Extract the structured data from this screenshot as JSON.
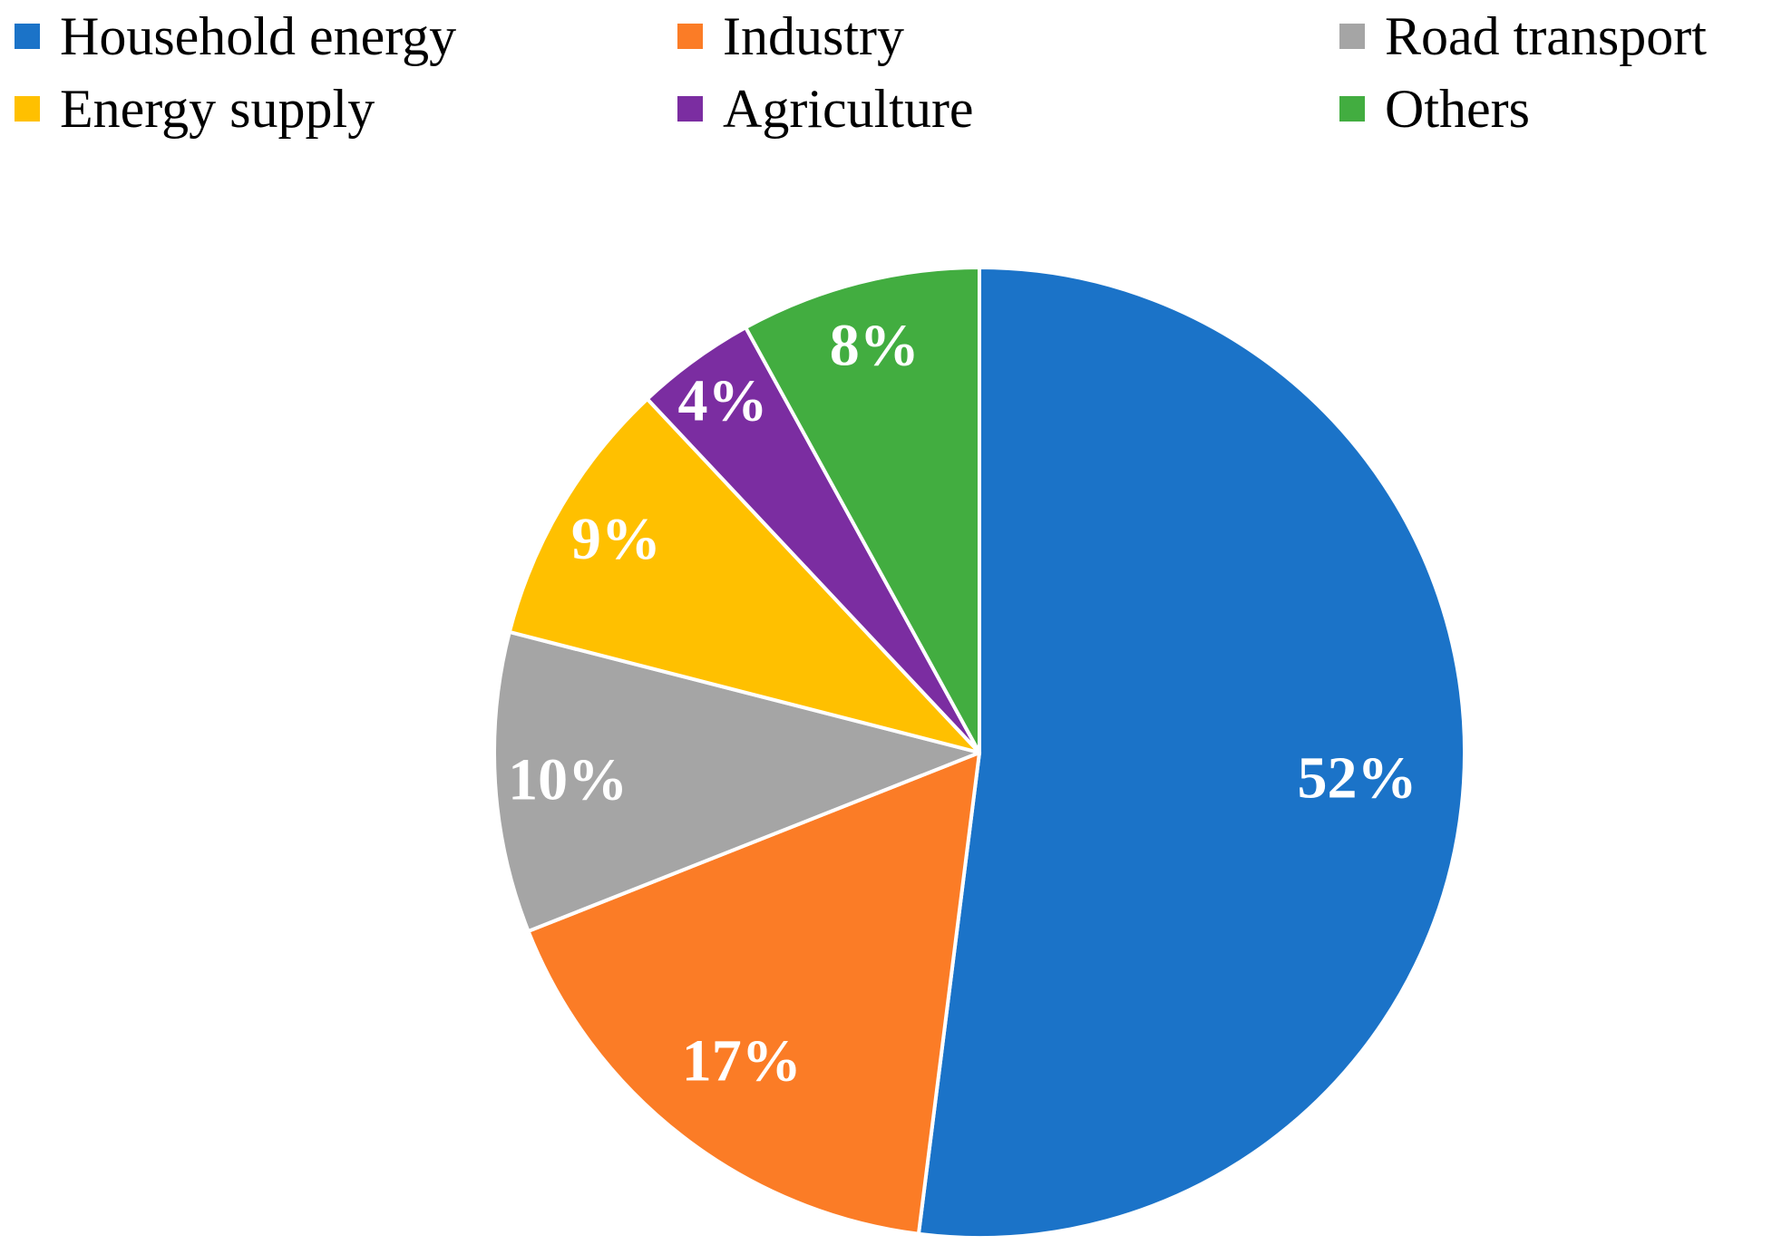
{
  "chart_data": {
    "type": "pie",
    "title": "",
    "categories": [
      "Household energy",
      "Industry",
      "Road transport",
      "Energy supply",
      "Agriculture",
      "Others"
    ],
    "values": [
      52,
      17,
      10,
      9,
      4,
      8
    ],
    "slice_labels": [
      "52%",
      "17%",
      "10%",
      "9%",
      "4%",
      "8%"
    ],
    "colors": [
      "#1b73c8",
      "#fb7c26",
      "#a5a5a5",
      "#ffc000",
      "#7b2da1",
      "#42ad40"
    ],
    "start_angle_deg": 0,
    "direction": "clockwise",
    "legend_position": "top",
    "slice_label_color": "#ffffff",
    "separator_color": "#ffffff"
  },
  "legend": {
    "items": [
      {
        "label": "Household energy",
        "color": "#1b73c8"
      },
      {
        "label": "Industry",
        "color": "#fb7c26"
      },
      {
        "label": "Road transport",
        "color": "#a5a5a5"
      },
      {
        "label": "Energy supply",
        "color": "#ffc000"
      },
      {
        "label": "Agriculture",
        "color": "#7b2da1"
      },
      {
        "label": "Others",
        "color": "#42ad40"
      }
    ]
  }
}
